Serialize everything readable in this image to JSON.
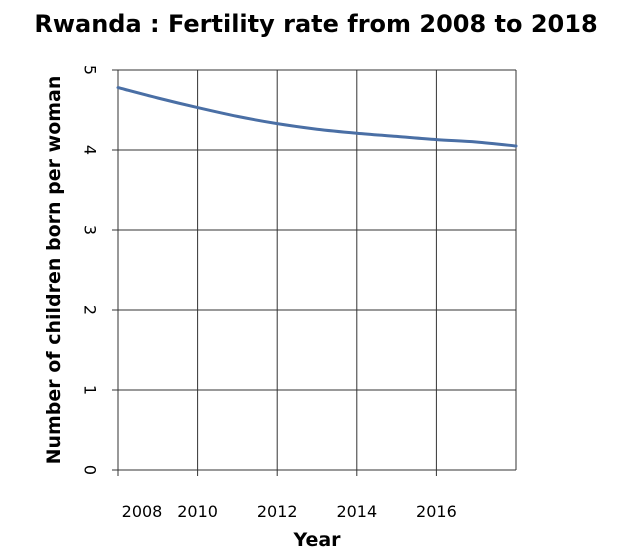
{
  "chart_data": {
    "type": "line",
    "title": "Rwanda : Fertility rate from 2008 to 2018",
    "xlabel": "Year",
    "ylabel": "Number of children born per woman",
    "xlim": [
      2008,
      2018
    ],
    "ylim": [
      0,
      5
    ],
    "x_ticks": [
      2008,
      2010,
      2012,
      2014,
      2016
    ],
    "y_ticks": [
      0,
      1,
      2,
      3,
      4,
      5
    ],
    "grid": true,
    "series": [
      {
        "color": "#4a6fa5",
        "x": [
          2008,
          2009,
          2010,
          2011,
          2012,
          2013,
          2014,
          2015,
          2016,
          2017,
          2018
        ],
        "y": [
          4.78,
          4.65,
          4.53,
          4.42,
          4.33,
          4.26,
          4.21,
          4.17,
          4.13,
          4.1,
          4.05
        ]
      }
    ]
  }
}
